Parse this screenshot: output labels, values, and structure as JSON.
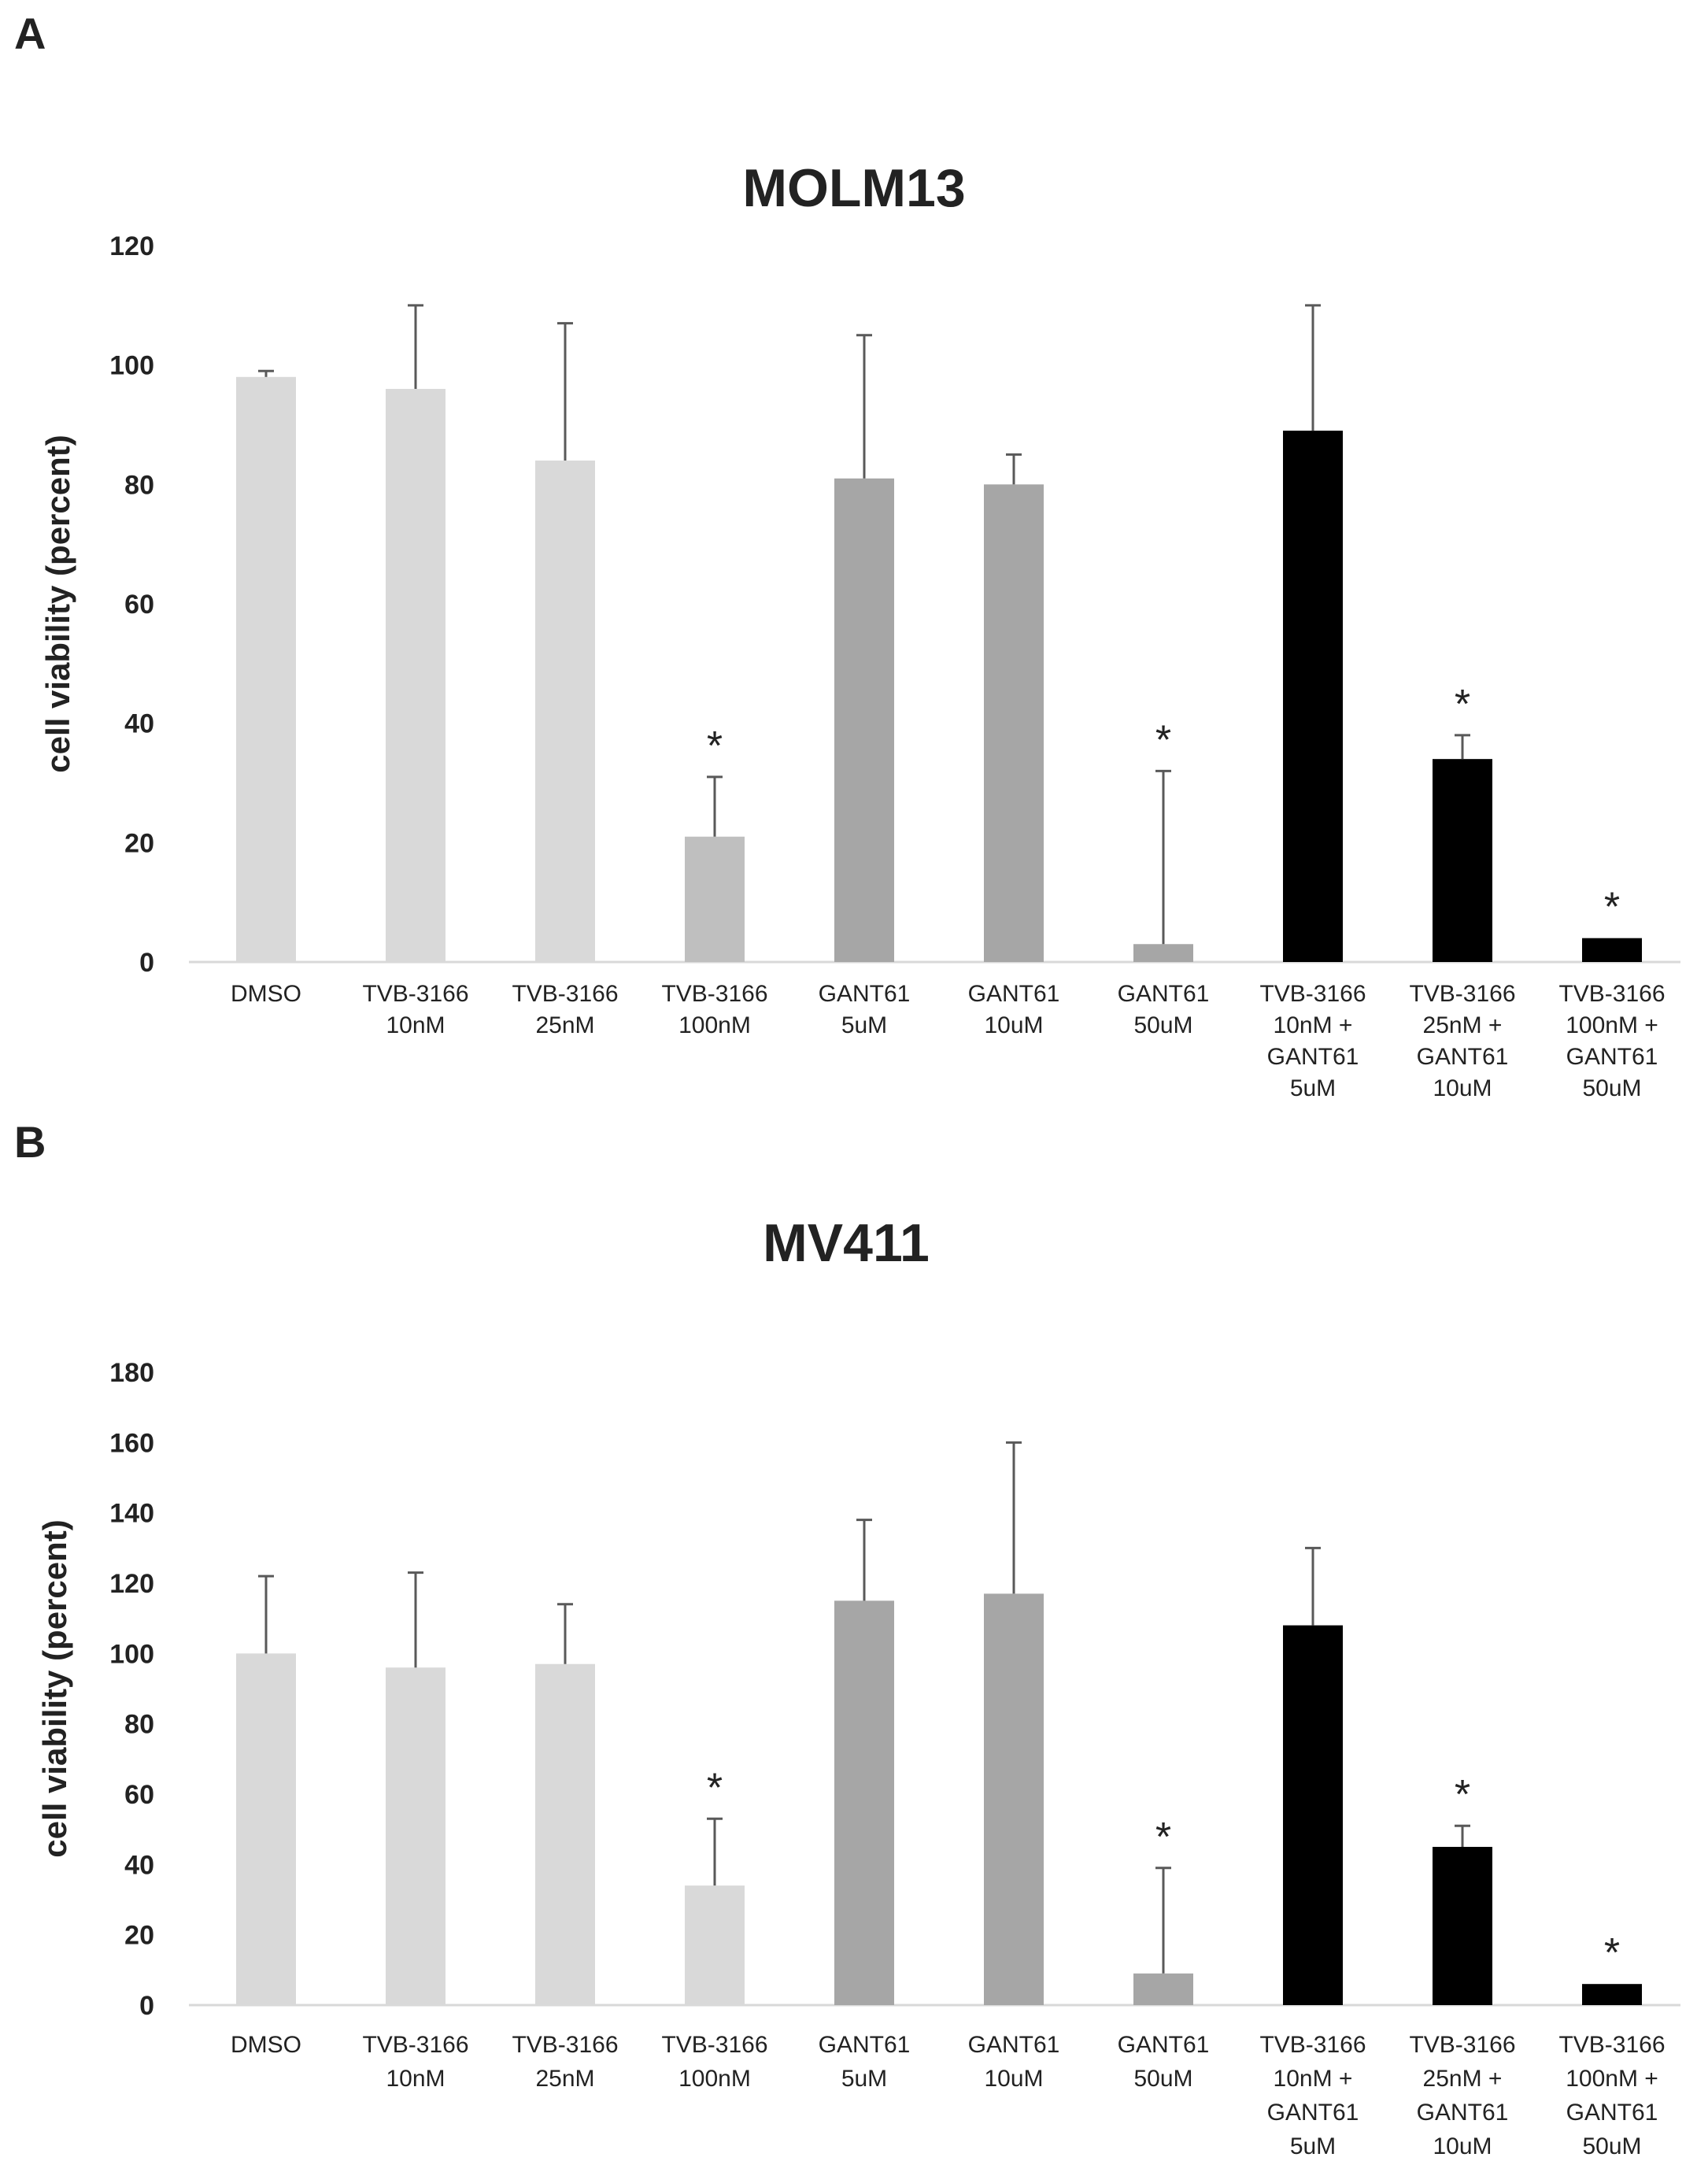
{
  "chart_data": [
    {
      "panel": "A",
      "type": "bar",
      "title": "MOLM13",
      "ylabel": "cell viability (percent)",
      "xlabel": "",
      "ylim": [
        0,
        120
      ],
      "yticks": [
        "0",
        "20",
        "40",
        "60",
        "80",
        "100",
        "120"
      ],
      "categories": [
        [
          "DMSO"
        ],
        [
          "TVB-3166",
          "10nM"
        ],
        [
          "TVB-3166",
          "25nM"
        ],
        [
          "TVB-3166",
          "100nM"
        ],
        [
          "GANT61",
          "5uM"
        ],
        [
          "GANT61",
          "10uM"
        ],
        [
          "GANT61",
          "50uM"
        ],
        [
          "TVB-3166",
          "10nM +",
          "GANT61",
          "5uM"
        ],
        [
          "TVB-3166",
          "25nM +",
          "GANT61",
          "10uM"
        ],
        [
          "TVB-3166",
          "100nM +",
          "GANT61",
          "50uM"
        ]
      ],
      "values": [
        98,
        96,
        84,
        21,
        81,
        80,
        3,
        89,
        34,
        4
      ],
      "errors": [
        1,
        14,
        23,
        10,
        24,
        5,
        29,
        21,
        4,
        0
      ],
      "significance": [
        "",
        "",
        "",
        "*",
        "",
        "",
        "*",
        "",
        "*",
        "*"
      ],
      "colors": [
        "#d9d9d9",
        "#d9d9d9",
        "#d9d9d9",
        "#bfbfbf",
        "#a6a6a6",
        "#a6a6a6",
        "#a6a6a6",
        "#000000",
        "#000000",
        "#000000"
      ],
      "grid": false,
      "legend": "none"
    },
    {
      "panel": "B",
      "type": "bar",
      "title": "MV411",
      "ylabel": "cell viability (percent)",
      "xlabel": "",
      "ylim": [
        0,
        180
      ],
      "yticks": [
        "0",
        "20",
        "40",
        "60",
        "80",
        "100",
        "120",
        "140",
        "160",
        "180"
      ],
      "categories": [
        [
          "DMSO"
        ],
        [
          "TVB-3166",
          "10nM"
        ],
        [
          "TVB-3166",
          "25nM"
        ],
        [
          "TVB-3166",
          "100nM"
        ],
        [
          "GANT61",
          "5uM"
        ],
        [
          "GANT61",
          "10uM"
        ],
        [
          "GANT61",
          "50uM"
        ],
        [
          "TVB-3166",
          "10nM +",
          "GANT61",
          "5uM"
        ],
        [
          "TVB-3166",
          "25nM +",
          "GANT61",
          "10uM"
        ],
        [
          "TVB-3166",
          "100nM +",
          "GANT61",
          "50uM"
        ]
      ],
      "values": [
        100,
        96,
        97,
        34,
        115,
        117,
        9,
        108,
        45,
        6
      ],
      "errors": [
        22,
        27,
        17,
        19,
        23,
        43,
        30,
        22,
        6,
        0
      ],
      "significance": [
        "",
        "",
        "",
        "*",
        "",
        "",
        "*",
        "",
        "*",
        "*"
      ],
      "colors": [
        "#d9d9d9",
        "#d9d9d9",
        "#d9d9d9",
        "#d9d9d9",
        "#a6a6a6",
        "#a6a6a6",
        "#a6a6a6",
        "#000000",
        "#000000",
        "#000000"
      ],
      "grid": false,
      "legend": "none"
    }
  ]
}
